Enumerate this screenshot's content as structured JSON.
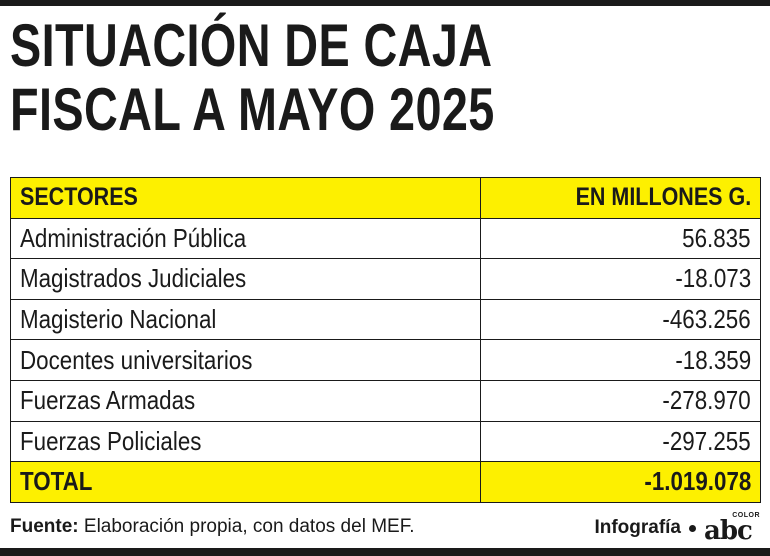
{
  "title": {
    "line1": "SITUACIÓN DE CAJA",
    "line2": "FISCAL A MAYO 2025"
  },
  "table": {
    "headers": {
      "sector": "SECTORES",
      "value": "EN MILLONES G."
    },
    "rows": [
      {
        "sector": "Administración Pública",
        "value": "56.835"
      },
      {
        "sector": "Magistrados Judiciales",
        "value": "-18.073"
      },
      {
        "sector": "Magisterio Nacional",
        "value": "-463.256"
      },
      {
        "sector": "Docentes universitarios",
        "value": "-18.359"
      },
      {
        "sector": "Fuerzas Armadas",
        "value": "-278.970"
      },
      {
        "sector": "Fuerzas Policiales",
        "value": "-297.255"
      }
    ],
    "total": {
      "label": "TOTAL",
      "value": "-1.019.078"
    }
  },
  "footer": {
    "source_label": "Fuente:",
    "source_text": "Elaboración propia, con datos del MEF.",
    "credit": "Infografía",
    "logo_word": "abc",
    "logo_sub": "COLOR"
  },
  "colors": {
    "highlight": "#fdf000",
    "ink": "#1a1a1a",
    "background": "#ffffff"
  },
  "icons": {
    "logo": "abc-color-logo"
  }
}
